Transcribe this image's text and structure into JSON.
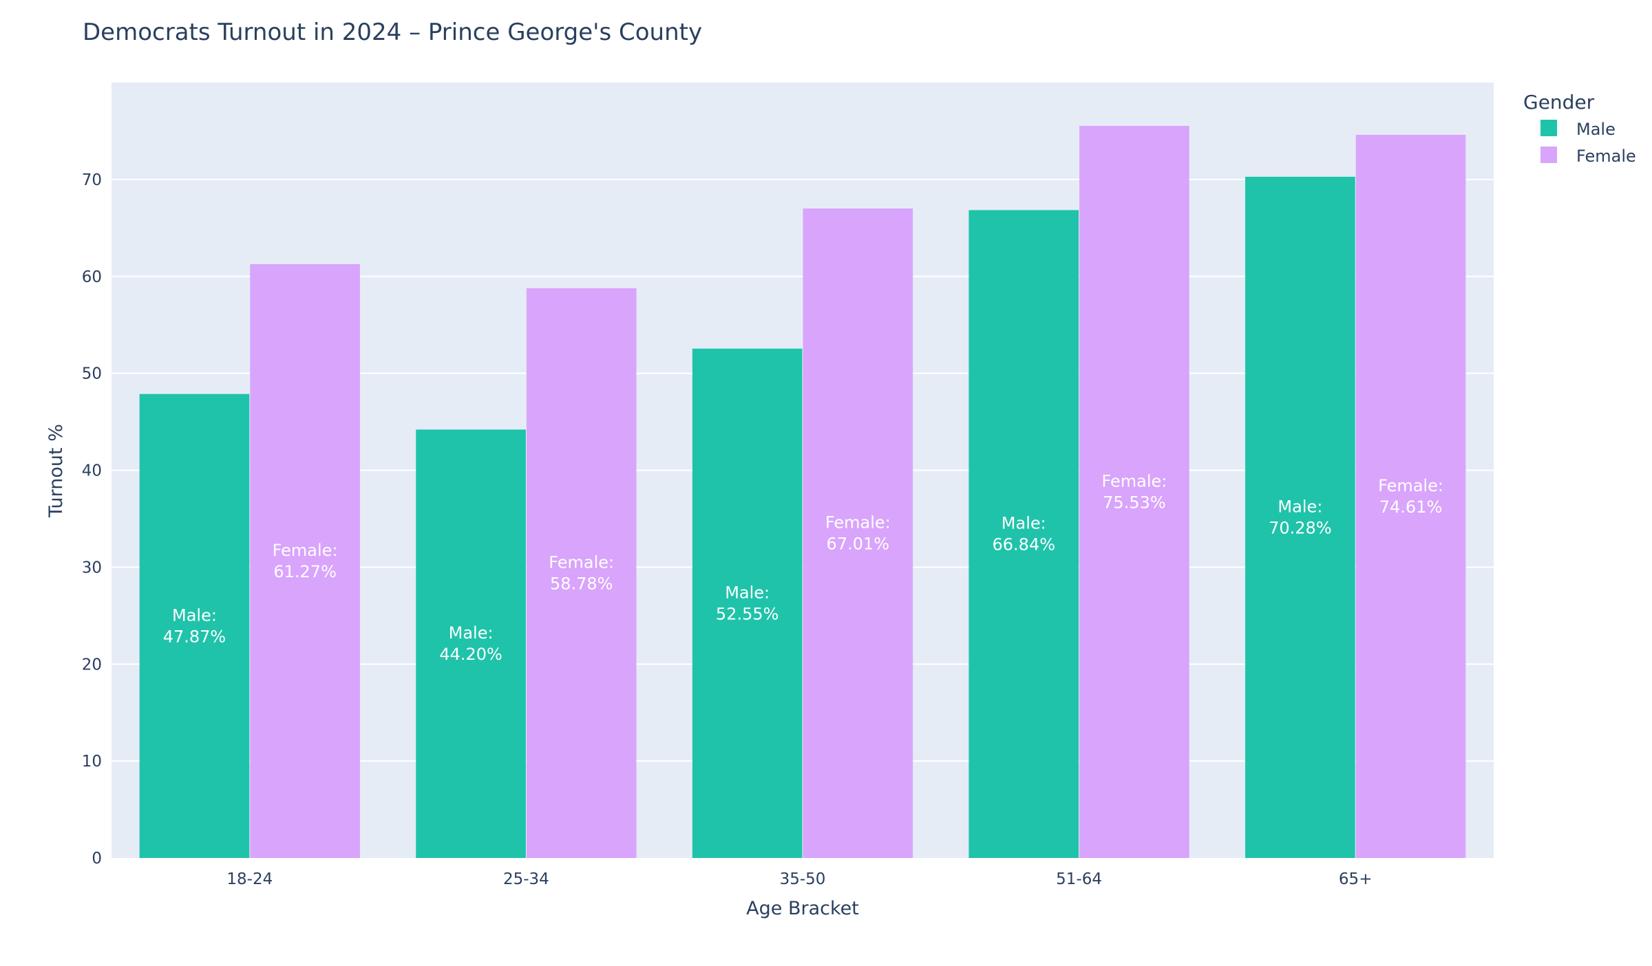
{
  "chart_data": {
    "type": "bar",
    "title": "Democrats Turnout in 2024 – Prince George's County",
    "xlabel": "Age Bracket",
    "ylabel": "Turnout %",
    "categories": [
      "18-24",
      "25-34",
      "35-50",
      "51-64",
      "65+"
    ],
    "ylim": [
      0,
      80
    ],
    "yticks": [
      0,
      10,
      20,
      30,
      40,
      50,
      60,
      70
    ],
    "grid": true,
    "legend": {
      "title": "Gender",
      "placement": "top-right"
    },
    "series": [
      {
        "name": "Male",
        "color": "#1fc3aa",
        "values": [
          47.87,
          44.2,
          52.55,
          66.84,
          70.28
        ],
        "labels": [
          "Male:\n47.87%",
          "Male:\n44.20%",
          "Male:\n52.55%",
          "Male:\n66.84%",
          "Male:\n70.28%"
        ]
      },
      {
        "name": "Female",
        "color": "#d9a4fc",
        "values": [
          61.27,
          58.78,
          67.01,
          75.53,
          74.61
        ],
        "labels": [
          "Female:\n61.27%",
          "Female:\n58.78%",
          "Female:\n67.01%",
          "Female:\n75.53%",
          "Female:\n74.61%"
        ]
      }
    ],
    "colors": {
      "plot_background": "#e5ecf6",
      "grid": "#ffffff",
      "text": "#2a3f5f",
      "bar_label": "#ffffff"
    }
  }
}
